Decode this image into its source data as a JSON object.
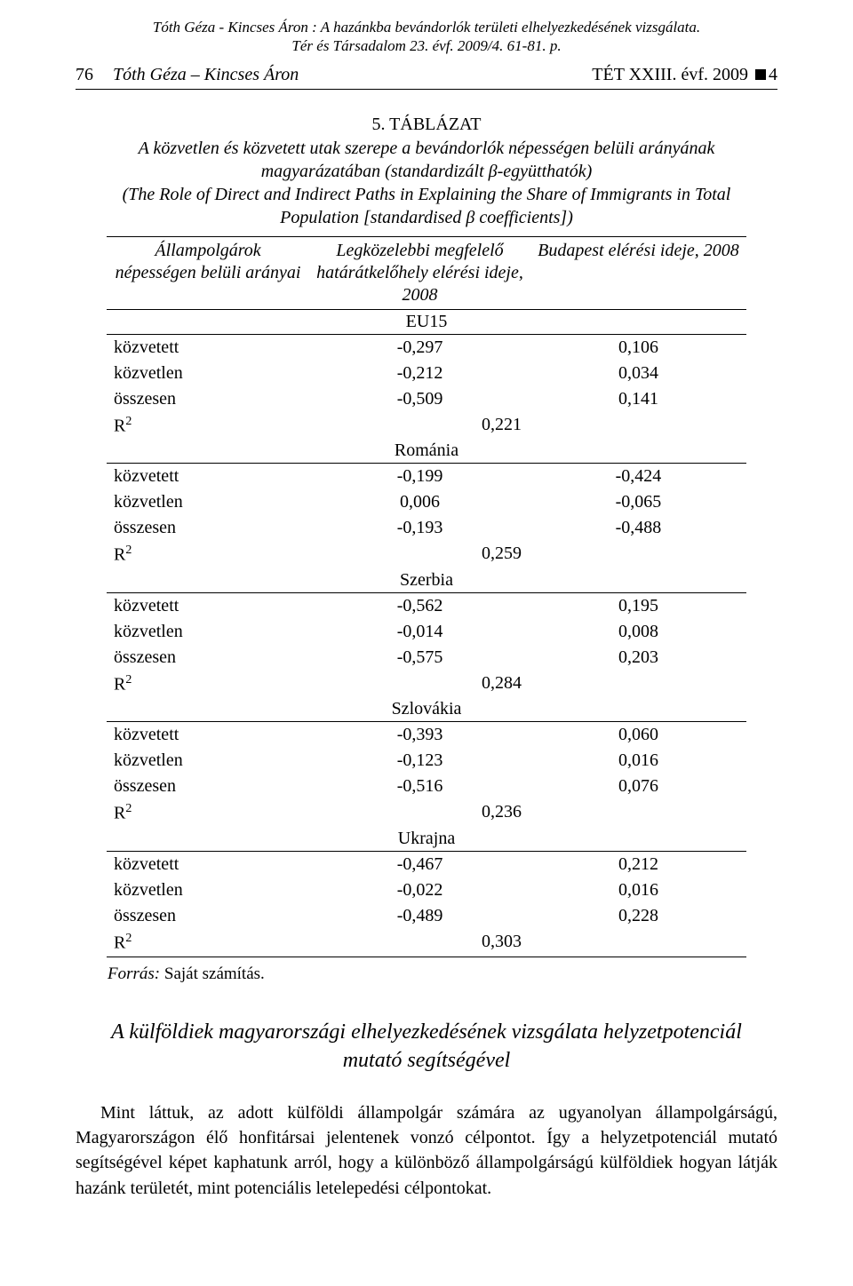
{
  "cite": {
    "line1": "Tóth Géza - Kincses Áron : A hazánkba bevándorlók területi elhelyezkedésének vizsgálata.",
    "line2": "Tér és Társadalom 23. évf. 2009/4. 61-81. p."
  },
  "running_head": {
    "page_number": "76",
    "authors": "Tóth Géza – Kincses Áron",
    "journal": "TÉT XXIII. évf. 2009",
    "issue_suffix": "4"
  },
  "table": {
    "number": "5. TÁBLÁZAT",
    "caption_hu": "A közvetlen és közvetett utak szerepe a bevándorlók népességen belüli arányának magyarázatában (standardizált β-együtthatók)",
    "caption_en": "(The Role of Direct and Indirect Paths in Explaining the Share of Immigrants in Total Population [standardised β coefficients])",
    "columns": {
      "c1": "Állampolgárok népességen belüli arányai",
      "c2": "Legközelebbi megfelelő határátkelőhely elérési ideje, 2008",
      "c3": "Budapest elérési ideje, 2008"
    },
    "row_labels": {
      "kozvetett": "közvetett",
      "kozvetlen": "közvetlen",
      "osszesen": "összesen",
      "r2": "R",
      "r2_sup": "2"
    },
    "groups": [
      {
        "name": "EU15",
        "rows": [
          {
            "label": "kozvetett",
            "c2": "-0,297",
            "c3": "0,106"
          },
          {
            "label": "kozvetlen",
            "c2": "-0,212",
            "c3": "0,034"
          },
          {
            "label": "osszesen",
            "c2": "-0,509",
            "c3": "0,141"
          }
        ],
        "r2": "0,221"
      },
      {
        "name": "Románia",
        "rows": [
          {
            "label": "kozvetett",
            "c2": "-0,199",
            "c3": "-0,424"
          },
          {
            "label": "kozvetlen",
            "c2": "0,006",
            "c3": "-0,065"
          },
          {
            "label": "osszesen",
            "c2": "-0,193",
            "c3": "-0,488"
          }
        ],
        "r2": "0,259"
      },
      {
        "name": "Szerbia",
        "rows": [
          {
            "label": "kozvetett",
            "c2": "-0,562",
            "c3": "0,195"
          },
          {
            "label": "kozvetlen",
            "c2": "-0,014",
            "c3": "0,008"
          },
          {
            "label": "osszesen",
            "c2": "-0,575",
            "c3": "0,203"
          }
        ],
        "r2": "0,284"
      },
      {
        "name": "Szlovákia",
        "rows": [
          {
            "label": "kozvetett",
            "c2": "-0,393",
            "c3": "0,060"
          },
          {
            "label": "kozvetlen",
            "c2": "-0,123",
            "c3": "0,016"
          },
          {
            "label": "osszesen",
            "c2": "-0,516",
            "c3": "0,076"
          }
        ],
        "r2": "0,236"
      },
      {
        "name": "Ukrajna",
        "rows": [
          {
            "label": "kozvetett",
            "c2": "-0,467",
            "c3": "0,212"
          },
          {
            "label": "kozvetlen",
            "c2": "-0,022",
            "c3": "0,016"
          },
          {
            "label": "osszesen",
            "c2": "-0,489",
            "c3": "0,228"
          }
        ],
        "r2": "0,303"
      }
    ],
    "source_label": "Forrás:",
    "source_text": " Saját számítás."
  },
  "section_title": "A külföldiek magyarországi elhelyezkedésének vizsgálata helyzetpotenciál mutató segítségével",
  "body_paragraph": "Mint láttuk, az adott külföldi állampolgár számára az ugyanolyan állampolgárságú, Magyarországon élő honfitársai jelentenek vonzó célpontot. Így a helyzetpotenciál mutató segítségével képet kaphatunk arról, hogy a különböző állampolgárságú külföldiek hogyan látják hazánk területét, mint potenciális letelepedési célpontokat."
}
